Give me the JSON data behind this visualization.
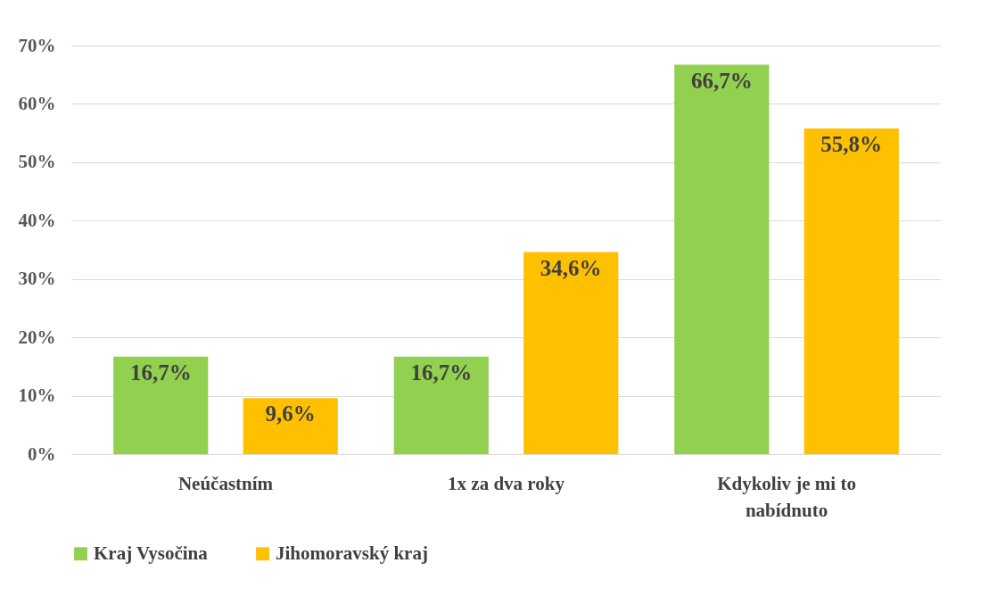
{
  "chart_data": {
    "type": "bar",
    "categories": [
      "Neúčastním",
      "1x za dva roky",
      "Kdykoliv je mi to nabídnuto"
    ],
    "series": [
      {
        "name": "Kraj Vysočina",
        "color": "#92d050",
        "values": [
          16.7,
          16.7,
          66.7
        ],
        "value_labels": [
          "16,7%",
          "16,7%",
          "66,7%"
        ]
      },
      {
        "name": "Jihomoravský kraj",
        "color": "#ffc000",
        "values": [
          9.6,
          34.6,
          55.8
        ],
        "value_labels": [
          "9,6%",
          "34,6%",
          "55,8%"
        ]
      }
    ],
    "ylim": [
      0,
      70
    ],
    "yticks": [
      {
        "value": 0,
        "label": "0%"
      },
      {
        "value": 10,
        "label": "10%"
      },
      {
        "value": 20,
        "label": "20%"
      },
      {
        "value": 30,
        "label": "30%"
      },
      {
        "value": 40,
        "label": "40%"
      },
      {
        "value": 50,
        "label": "50%"
      },
      {
        "value": 60,
        "label": "60%"
      },
      {
        "value": 70,
        "label": "70%"
      }
    ],
    "grid": "y",
    "legend": "bottom"
  }
}
